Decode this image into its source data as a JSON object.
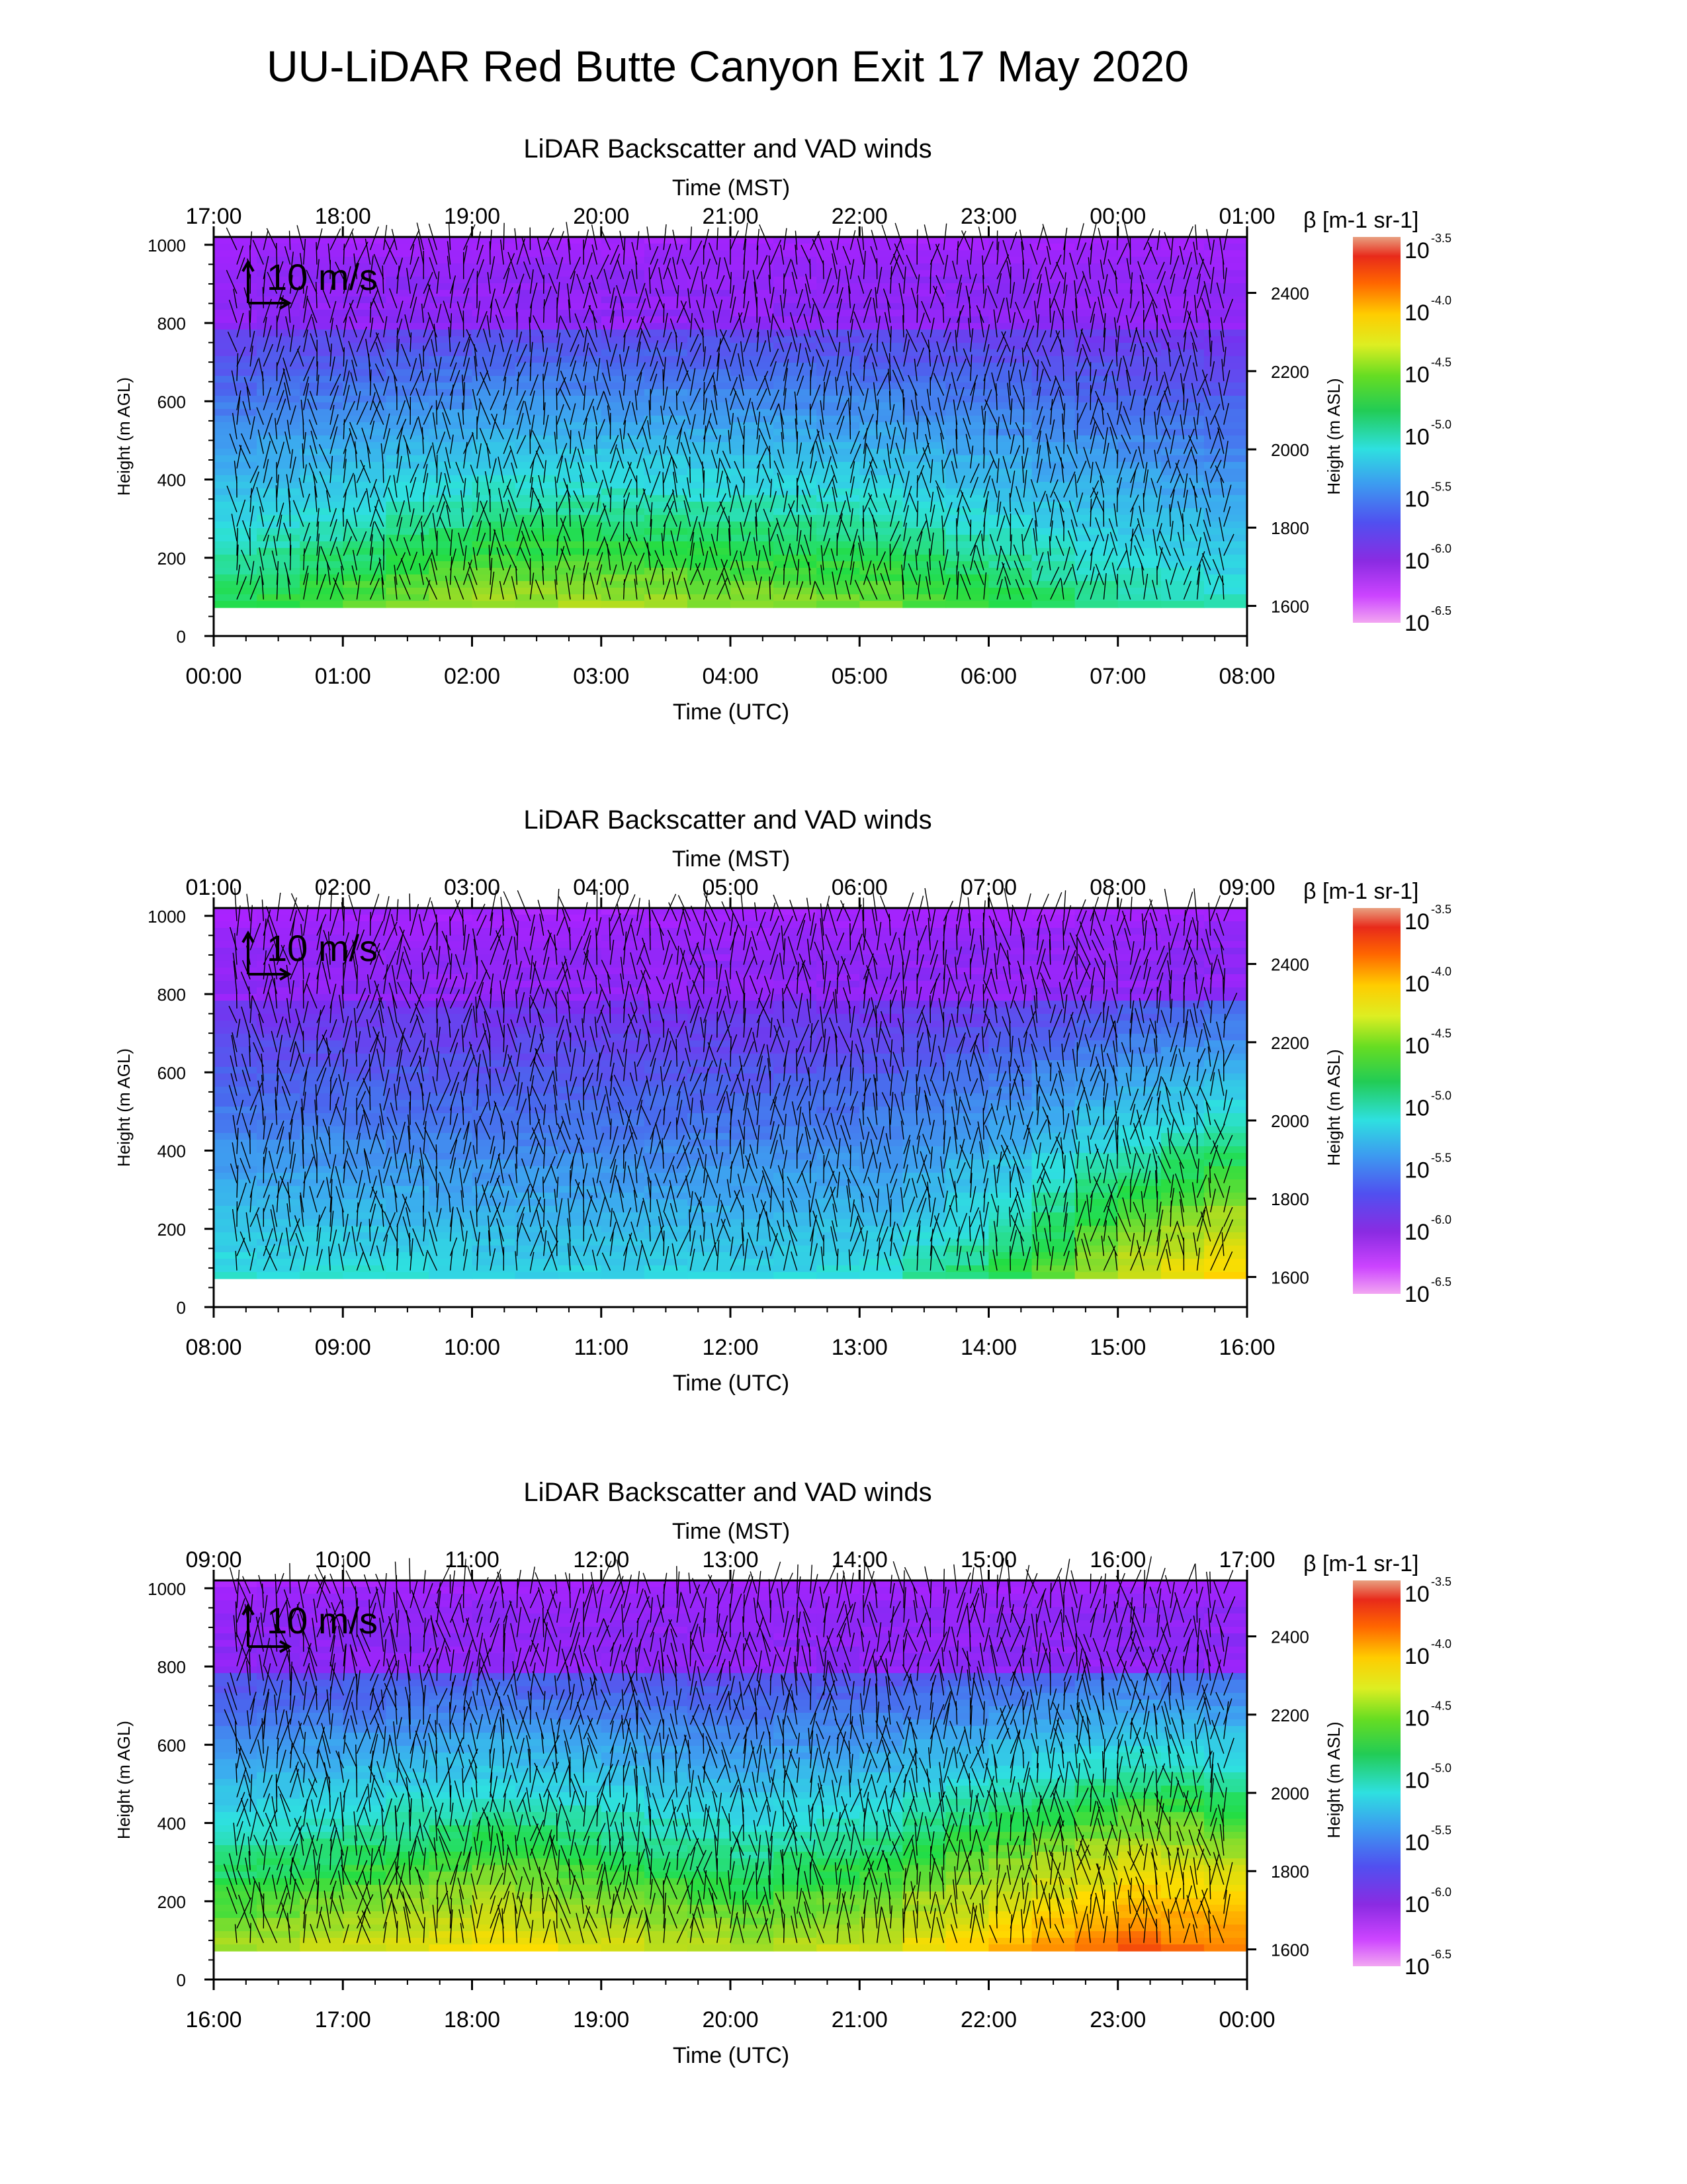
{
  "title": "UU-LiDAR Red Butte Canyon Exit 17 May 2020",
  "colors": {
    "scale": [
      "#ee88ee",
      "#aa22ff",
      "#7a2cf0",
      "#4a66ee",
      "#3ca8f0",
      "#2ee0e0",
      "#22dd44",
      "#aadd22",
      "#ffdd00",
      "#ff8800",
      "#ee2211",
      "#e88a6a"
    ],
    "arrow": "#000000"
  },
  "chart_data": [
    {
      "type": "heatmap",
      "title": "LiDAR Backscatter and VAD winds",
      "top_axis_label": "Time (MST)",
      "top_ticks": [
        "17:00",
        "18:00",
        "19:00",
        "20:00",
        "21:00",
        "22:00",
        "23:00",
        "00:00",
        "01:00"
      ],
      "xlabel": "Time (UTC)",
      "x_ticks": [
        "00:00",
        "01:00",
        "02:00",
        "03:00",
        "04:00",
        "05:00",
        "06:00",
        "07:00",
        "08:00"
      ],
      "ylabel": "Height (m AGL)",
      "y_ticks": [
        "0",
        "200",
        "400",
        "600",
        "800",
        "1000"
      ],
      "ylim": [
        0,
        1020
      ],
      "right_ylabel": "Height (m ASL)",
      "right_ticks": [
        "1600",
        "1800",
        "2000",
        "2200",
        "2400"
      ],
      "reference_arrow_label": "10 m/s",
      "colorbar": {
        "label": "β [m-1 sr-1]",
        "ticks": [
          {
            "base": "10",
            "exp": "-3.5"
          },
          {
            "base": "10",
            "exp": "-4.0"
          },
          {
            "base": "10",
            "exp": "-4.5"
          },
          {
            "base": "10",
            "exp": "-5.0"
          },
          {
            "base": "10",
            "exp": "-5.5"
          },
          {
            "base": "10",
            "exp": "-6.0"
          },
          {
            "base": "10",
            "exp": "-6.5"
          }
        ]
      },
      "intensity": [
        0.3,
        0.35,
        0.4,
        0.4,
        0.38,
        0.36,
        0.3,
        0.25,
        0.2
      ],
      "wind_strength": 0.5
    },
    {
      "type": "heatmap",
      "title": "LiDAR Backscatter and VAD winds",
      "top_axis_label": "Time (MST)",
      "top_ticks": [
        "01:00",
        "02:00",
        "03:00",
        "04:00",
        "05:00",
        "06:00",
        "07:00",
        "08:00",
        "09:00"
      ],
      "xlabel": "Time (UTC)",
      "x_ticks": [
        "08:00",
        "09:00",
        "10:00",
        "11:00",
        "12:00",
        "13:00",
        "14:00",
        "15:00",
        "16:00"
      ],
      "ylabel": "Height (m AGL)",
      "y_ticks": [
        "0",
        "200",
        "400",
        "600",
        "800",
        "1000"
      ],
      "ylim": [
        0,
        1020
      ],
      "right_ylabel": "Height (m ASL)",
      "right_ticks": [
        "1600",
        "1800",
        "2000",
        "2200",
        "2400"
      ],
      "reference_arrow_label": "10 m/s",
      "colorbar": {
        "label": "β [m-1 sr-1]",
        "ticks": [
          {
            "base": "10",
            "exp": "-3.5"
          },
          {
            "base": "10",
            "exp": "-4.0"
          },
          {
            "base": "10",
            "exp": "-4.5"
          },
          {
            "base": "10",
            "exp": "-5.0"
          },
          {
            "base": "10",
            "exp": "-5.5"
          },
          {
            "base": "10",
            "exp": "-6.0"
          },
          {
            "base": "10",
            "exp": "-6.5"
          }
        ]
      },
      "intensity": [
        0.2,
        0.2,
        0.18,
        0.18,
        0.18,
        0.2,
        0.3,
        0.45,
        0.55
      ],
      "wind_strength": 0.75
    },
    {
      "type": "heatmap",
      "title": "LiDAR Backscatter and VAD winds",
      "top_axis_label": "Time (MST)",
      "top_ticks": [
        "09:00",
        "10:00",
        "11:00",
        "12:00",
        "13:00",
        "14:00",
        "15:00",
        "16:00",
        "17:00"
      ],
      "xlabel": "Time (UTC)",
      "x_ticks": [
        "16:00",
        "17:00",
        "18:00",
        "19:00",
        "20:00",
        "21:00",
        "22:00",
        "23:00",
        "00:00"
      ],
      "ylabel": "Height (m AGL)",
      "y_ticks": [
        "0",
        "200",
        "400",
        "600",
        "800",
        "1000"
      ],
      "ylim": [
        0,
        1020
      ],
      "right_ylabel": "Height (m ASL)",
      "right_ticks": [
        "1600",
        "1800",
        "2000",
        "2200",
        "2400"
      ],
      "reference_arrow_label": "10 m/s",
      "colorbar": {
        "label": "β [m-1 sr-1]",
        "ticks": [
          {
            "base": "10",
            "exp": "-3.5"
          },
          {
            "base": "10",
            "exp": "-4.0"
          },
          {
            "base": "10",
            "exp": "-4.5"
          },
          {
            "base": "10",
            "exp": "-5.0"
          },
          {
            "base": "10",
            "exp": "-5.5"
          },
          {
            "base": "10",
            "exp": "-6.0"
          },
          {
            "base": "10",
            "exp": "-6.5"
          }
        ]
      },
      "intensity": [
        0.4,
        0.45,
        0.5,
        0.45,
        0.4,
        0.45,
        0.55,
        0.65,
        0.6
      ],
      "wind_strength": 1.0
    }
  ]
}
